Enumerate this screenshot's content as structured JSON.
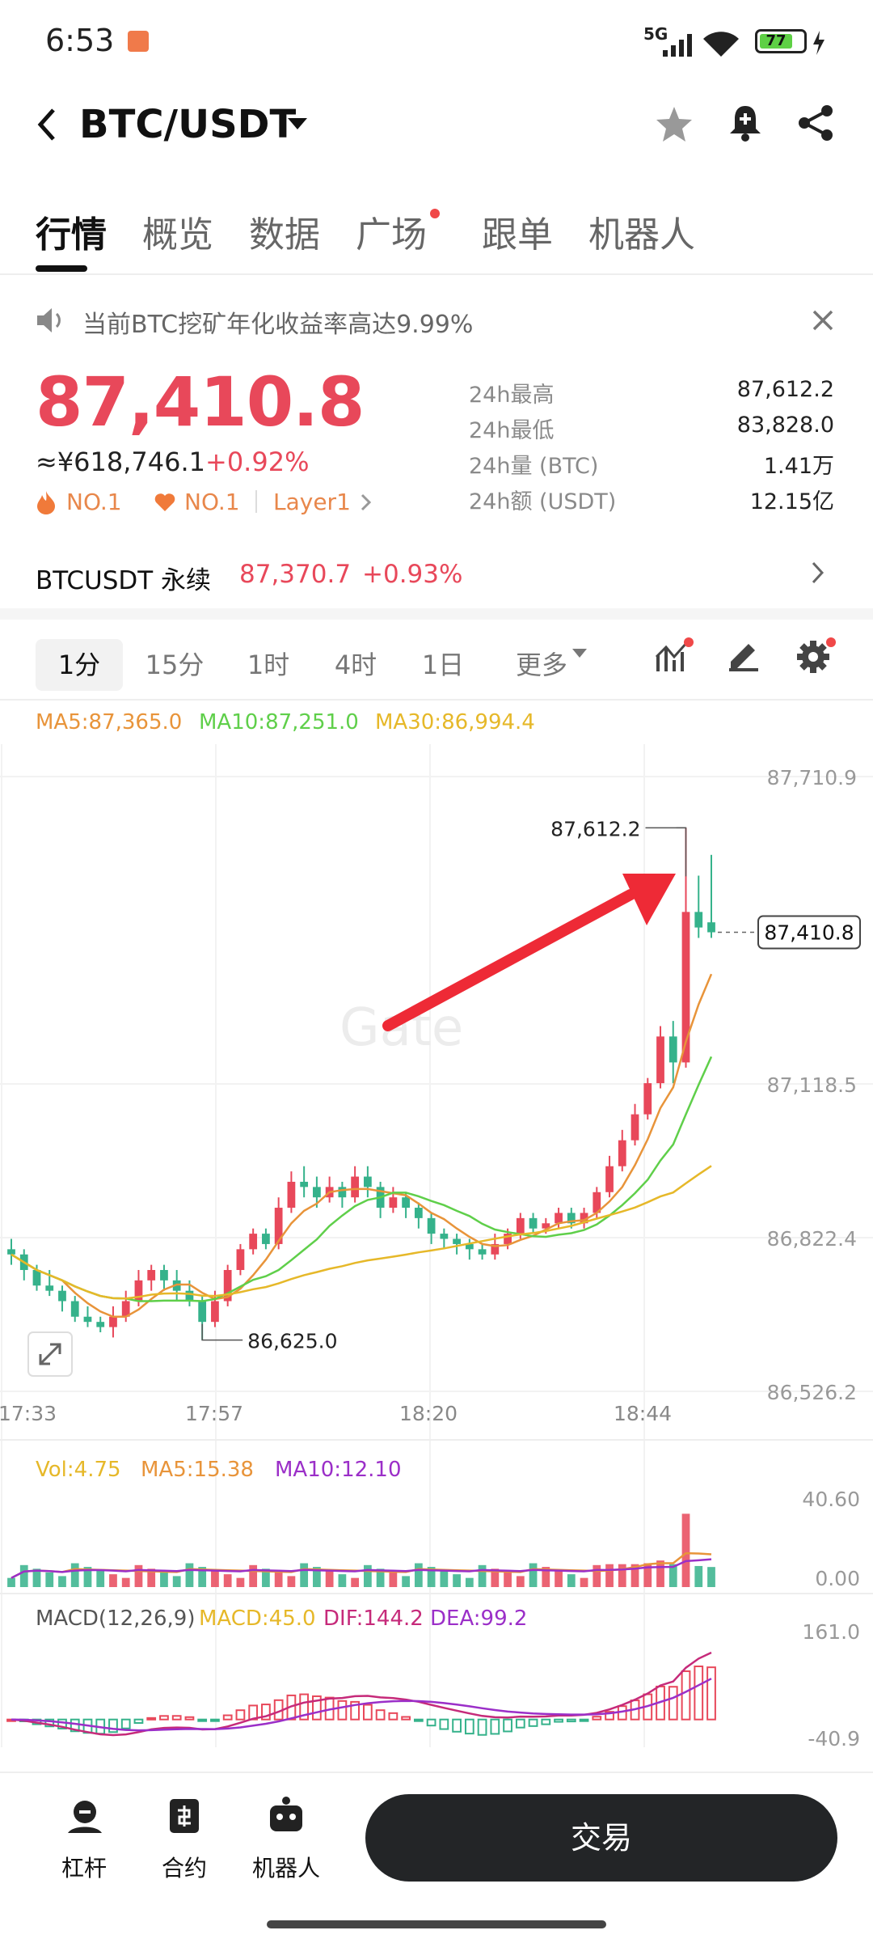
{
  "status": {
    "time": "6:53",
    "network": "5G",
    "battery": "77"
  },
  "header": {
    "pair": "BTC/USDT"
  },
  "tabs": [
    {
      "label": "行情",
      "active": true
    },
    {
      "label": "概览"
    },
    {
      "label": "数据"
    },
    {
      "label": "广场",
      "dot": true
    },
    {
      "label": "跟单"
    },
    {
      "label": "机器人"
    }
  ],
  "announcement": {
    "text": "当前BTC挖矿年化收益率高达9.99%"
  },
  "price": {
    "last": "87,410.8",
    "cny": "≈¥618,746.1",
    "change": "+0.92%",
    "ranks": [
      "NO.1",
      "NO.1",
      "Layer1"
    ]
  },
  "stats": [
    {
      "label": "24h最高",
      "value": "87,612.2"
    },
    {
      "label": "24h最低",
      "value": "83,828.0"
    },
    {
      "label": "24h量 (BTC)",
      "value": "1.41万"
    },
    {
      "label": "24h额 (USDT)",
      "value": "12.15亿"
    }
  ],
  "perp": {
    "name": "BTCUSDT 永续",
    "price": "87,370.7",
    "change": "+0.93%"
  },
  "intervals": [
    {
      "label": "1分",
      "active": true
    },
    {
      "label": "15分"
    },
    {
      "label": "1时"
    },
    {
      "label": "4时"
    },
    {
      "label": "1日"
    },
    {
      "label": "更多"
    }
  ],
  "indicators": {
    "ma5": "MA5:87,365.0",
    "ma10": "MA10:87,251.0",
    "ma30": "MA30:86,994.4",
    "vol": "Vol:4.75",
    "vol_ma5": "MA5:15.38",
    "vol_ma10": "MA10:12.10",
    "macd_title": "MACD(12,26,9)",
    "macd": "MACD:45.0",
    "dif": "DIF:144.2",
    "dea": "DEA:99.2"
  },
  "colors": {
    "up": "#e8485a",
    "down": "#35b28b",
    "ma5": "#e8943a",
    "ma10": "#5fcf4a",
    "ma30": "#e6b829",
    "dif": "#c62a7a",
    "dea": "#9b2fc8"
  },
  "bottom_nav": [
    {
      "label": "杠杆"
    },
    {
      "label": "合约"
    },
    {
      "label": "机器人"
    }
  ],
  "trade_button": "交易",
  "chart_data": {
    "type": "candlestick",
    "y_ticks": [
      "87,710.9",
      "87,118.5",
      "86,822.4",
      "86,526.2"
    ],
    "x_ticks": [
      "17:33",
      "17:57",
      "18:20",
      "18:44"
    ],
    "high_label": "87,612.2",
    "low_label": "86,625.0",
    "last_label": "87,410.8",
    "watermark": "Gate",
    "ylim": [
      86526.2,
      87710.9
    ],
    "candles": [
      [
        86800,
        86790,
        86820,
        86770
      ],
      [
        86790,
        86760,
        86800,
        86740
      ],
      [
        86760,
        86730,
        86770,
        86720
      ],
      [
        86730,
        86720,
        86760,
        86710
      ],
      [
        86720,
        86700,
        86730,
        86680
      ],
      [
        86700,
        86670,
        86710,
        86660
      ],
      [
        86670,
        86660,
        86690,
        86650
      ],
      [
        86660,
        86650,
        86670,
        86640
      ],
      [
        86650,
        86670,
        86690,
        86630
      ],
      [
        86670,
        86700,
        86720,
        86660
      ],
      [
        86700,
        86740,
        86760,
        86690
      ],
      [
        86740,
        86760,
        86770,
        86720
      ],
      [
        86760,
        86740,
        86770,
        86720
      ],
      [
        86740,
        86720,
        86760,
        86700
      ],
      [
        86720,
        86700,
        86740,
        86690
      ],
      [
        86700,
        86660,
        86710,
        86625
      ],
      [
        86660,
        86700,
        86720,
        86650
      ],
      [
        86700,
        86760,
        86770,
        86690
      ],
      [
        86760,
        86800,
        86810,
        86750
      ],
      [
        86800,
        86830,
        86840,
        86790
      ],
      [
        86830,
        86810,
        86840,
        86800
      ],
      [
        86810,
        86880,
        86900,
        86800
      ],
      [
        86880,
        86930,
        86950,
        86870
      ],
      [
        86930,
        86920,
        86960,
        86900
      ],
      [
        86920,
        86900,
        86940,
        86880
      ],
      [
        86900,
        86920,
        86940,
        86890
      ],
      [
        86920,
        86900,
        86930,
        86880
      ],
      [
        86900,
        86940,
        86960,
        86890
      ],
      [
        86940,
        86920,
        86960,
        86900
      ],
      [
        86920,
        86880,
        86930,
        86860
      ],
      [
        86880,
        86900,
        86920,
        86870
      ],
      [
        86900,
        86880,
        86910,
        86860
      ],
      [
        86880,
        86860,
        86890,
        86840
      ],
      [
        86860,
        86830,
        86870,
        86810
      ],
      [
        86830,
        86820,
        86840,
        86800
      ],
      [
        86820,
        86810,
        86830,
        86790
      ],
      [
        86810,
        86800,
        86820,
        86780
      ],
      [
        86800,
        86790,
        86810,
        86780
      ],
      [
        86790,
        86810,
        86830,
        86780
      ],
      [
        86810,
        86830,
        86840,
        86800
      ],
      [
        86830,
        86860,
        86870,
        86820
      ],
      [
        86860,
        86840,
        86870,
        86830
      ],
      [
        86840,
        86850,
        86860,
        86830
      ],
      [
        86850,
        86870,
        86880,
        86840
      ],
      [
        86870,
        86850,
        86880,
        86840
      ],
      [
        86850,
        86870,
        86880,
        86840
      ],
      [
        86870,
        86910,
        86920,
        86860
      ],
      [
        86910,
        86960,
        86980,
        86900
      ],
      [
        86960,
        87010,
        87030,
        86950
      ],
      [
        87010,
        87060,
        87080,
        87000
      ],
      [
        87060,
        87120,
        87130,
        87050
      ],
      [
        87120,
        87210,
        87230,
        87110
      ],
      [
        87210,
        87160,
        87240,
        87120
      ],
      [
        87160,
        87450,
        87612.2,
        87150
      ],
      [
        87450,
        87420,
        87520,
        87400
      ],
      [
        87430,
        87410.8,
        87560,
        87400
      ]
    ],
    "volume": {
      "max": "40.60",
      "min": "0.00"
    },
    "macd_axis": {
      "max": "161.0",
      "min": "-40.9"
    }
  }
}
